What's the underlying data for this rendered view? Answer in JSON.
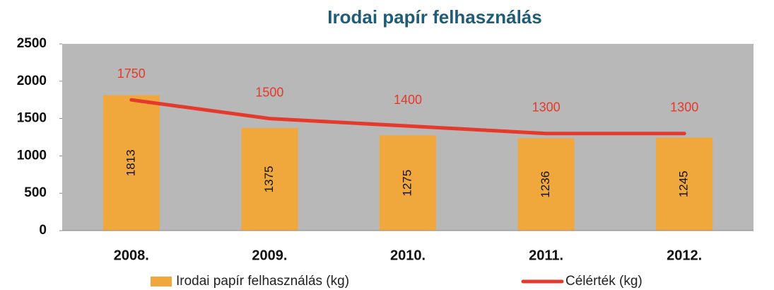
{
  "chart_data": {
    "type": "bar",
    "title": "Irodai papír felhasználás",
    "categories": [
      "2008.",
      "2009.",
      "2010.",
      "2011.",
      "2012."
    ],
    "series": [
      {
        "name": "Irodai papír felhasználás (kg)",
        "type": "bar",
        "color": "#f0a73c",
        "values": [
          1813,
          1375,
          1275,
          1236,
          1245
        ]
      },
      {
        "name": "Célérték (kg)",
        "type": "line",
        "color": "#e4392b",
        "values": [
          1750,
          1500,
          1400,
          1300,
          1300
        ]
      }
    ],
    "ylim": [
      0,
      2500
    ],
    "yticks": [
      0,
      500,
      1000,
      1500,
      2000,
      2500
    ],
    "grid": false
  }
}
